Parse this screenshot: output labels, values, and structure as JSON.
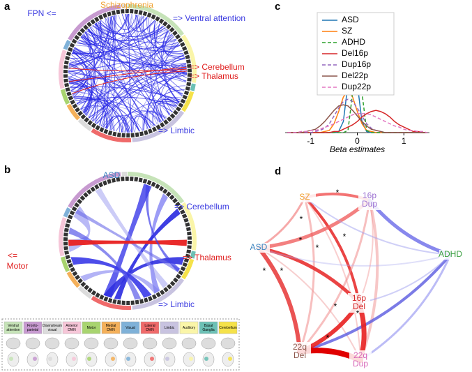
{
  "panel_labels": [
    "a",
    "b",
    "c",
    "d"
  ],
  "panel_a": {
    "annotations": [
      {
        "text": "Schizophrenia",
        "color": "#f0a030"
      },
      {
        "text": "FPN <=",
        "color": "#3a3ae0"
      },
      {
        "text": "=> Ventral attention",
        "color": "#3a3ae0"
      },
      {
        "text": "=> Cerebellum",
        "color": "#e02020"
      },
      {
        "text": "=> Thalamus",
        "color": "#e02020"
      },
      {
        "text": "=> Limbic",
        "color": "#3a3ae0"
      }
    ]
  },
  "panel_b": {
    "annotations": [
      {
        "text": "ASD",
        "color": "#3f86c0"
      },
      {
        "text": "=> Cerebellum",
        "color": "#3a3ae0"
      },
      {
        "text": "<=",
        "color": "#e02020"
      },
      {
        "text": "Motor",
        "color": "#e02020"
      },
      {
        "text": "=> Thalamus",
        "color": "#e02020"
      },
      {
        "text": "=> Limbic",
        "color": "#3a3ae0"
      }
    ]
  },
  "network_legend": [
    {
      "lines": [
        "Ventral",
        "attention"
      ],
      "color": "#c6e3b8"
    },
    {
      "lines": [
        "Fronto-",
        "parietal"
      ],
      "color": "#c79ad0"
    },
    {
      "lines": [
        "Downstream",
        "visual"
      ],
      "color": "#dcdcdc"
    },
    {
      "lines": [
        "Anterior",
        "DMN"
      ],
      "color": "#f6c6d8"
    },
    {
      "lines": [
        "Motor"
      ],
      "color": "#a8d46f"
    },
    {
      "lines": [
        "Medial",
        "DMN"
      ],
      "color": "#f4b05a"
    },
    {
      "lines": [
        "Visual"
      ],
      "color": "#7fb1d8"
    },
    {
      "lines": [
        "Lateral",
        "DMN"
      ],
      "color": "#ef6a6a"
    },
    {
      "lines": [
        "Limbic"
      ],
      "color": "#c8c3e0"
    },
    {
      "lines": [
        "Auditory"
      ],
      "color": "#faf5a8"
    },
    {
      "lines": [
        "Basal",
        "Ganglia"
      ],
      "color": "#6cc0b5"
    },
    {
      "lines": [
        "Cerebellum"
      ],
      "color": "#f5e24a"
    }
  ],
  "chart_data": {
    "type": "line",
    "x_label": "Beta estimates",
    "x": [
      -1.5,
      -1.4,
      -1.3,
      -1.2,
      -1.1,
      -1.0,
      -0.9,
      -0.8,
      -0.7,
      -0.6,
      -0.5,
      -0.4,
      -0.3,
      -0.2,
      -0.1,
      0,
      0.1,
      0.2,
      0.3,
      0.4,
      0.5,
      0.6,
      0.7,
      0.8,
      0.9,
      1.0,
      1.1,
      1.2,
      1.3,
      1.4,
      1.5
    ],
    "xlim": [
      -1.55,
      1.55
    ],
    "xticks": [
      -1,
      0,
      1
    ],
    "ylim": [
      0,
      1.08
    ],
    "legend": "upper right",
    "series": [
      {
        "name": "ASD",
        "color": "#1f77b4",
        "dashed": false,
        "values": [
          0,
          0,
          0,
          0,
          0,
          0,
          0,
          0,
          0,
          0,
          0,
          0.01,
          0.1,
          0.44,
          0.72,
          0.44,
          0.1,
          0.01,
          0,
          0,
          0,
          0,
          0,
          0,
          0,
          0,
          0,
          0,
          0,
          0,
          0
        ]
      },
      {
        "name": "SZ",
        "color": "#ff7f0e",
        "dashed": false,
        "values": [
          0,
          0,
          0,
          0,
          0,
          0,
          0,
          0,
          0.01,
          0.02,
          0.08,
          0.19,
          0.32,
          0.38,
          0.32,
          0.19,
          0.08,
          0.02,
          0.01,
          0,
          0,
          0,
          0,
          0,
          0,
          0,
          0,
          0,
          0,
          0,
          0
        ]
      },
      {
        "name": "ADHD",
        "color": "#2ca02c",
        "dashed": true,
        "values": [
          0,
          0,
          0,
          0,
          0,
          0,
          0,
          0,
          0,
          0,
          0,
          0,
          0,
          0.02,
          0.36,
          1,
          0.36,
          0.02,
          0,
          0,
          0,
          0,
          0,
          0,
          0,
          0,
          0,
          0,
          0,
          0,
          0
        ]
      },
      {
        "name": "Del16p",
        "color": "#d62728",
        "dashed": false,
        "values": [
          0,
          0,
          0,
          0,
          0,
          0,
          0,
          0,
          0,
          0,
          0.01,
          0.01,
          0.03,
          0.05,
          0.07,
          0.1,
          0.14,
          0.17,
          0.19,
          0.2,
          0.19,
          0.17,
          0.14,
          0.1,
          0.07,
          0.05,
          0.03,
          0.01,
          0.01,
          0,
          0
        ]
      },
      {
        "name": "Dup16p",
        "color": "#9467bd",
        "dashed": true,
        "values": [
          0,
          0,
          0,
          0,
          0,
          0,
          0.01,
          0.02,
          0.04,
          0.08,
          0.15,
          0.22,
          0.28,
          0.3,
          0.28,
          0.22,
          0.15,
          0.08,
          0.04,
          0.02,
          0.01,
          0,
          0,
          0,
          0,
          0,
          0,
          0,
          0,
          0,
          0
        ]
      },
      {
        "name": "Del22p",
        "color": "#8c564b",
        "dashed": false,
        "values": [
          0,
          0,
          0,
          0,
          0.01,
          0.02,
          0.03,
          0.06,
          0.1,
          0.15,
          0.2,
          0.24,
          0.25,
          0.24,
          0.2,
          0.15,
          0.1,
          0.06,
          0.03,
          0.02,
          0.01,
          0,
          0,
          0,
          0,
          0,
          0,
          0,
          0,
          0,
          0
        ]
      },
      {
        "name": "Dup22p",
        "color": "#e377c2",
        "dashed": true,
        "values": [
          0,
          0,
          0,
          0.01,
          0.01,
          0.02,
          0.02,
          0.03,
          0.05,
          0.06,
          0.08,
          0.1,
          0.12,
          0.14,
          0.16,
          0.17,
          0.17,
          0.17,
          0.16,
          0.14,
          0.12,
          0.1,
          0.08,
          0.06,
          0.05,
          0.03,
          0.02,
          0.02,
          0.01,
          0.01,
          0
        ]
      }
    ]
  },
  "panel_d": {
    "significance_marker": "*",
    "nodes": [
      {
        "lines": [
          "SZ"
        ],
        "color": "#f0a030"
      },
      {
        "lines": [
          "16p",
          "Dup"
        ],
        "color": "#9b6fd0"
      },
      {
        "lines": [
          "ASD"
        ],
        "color": "#3f86c0"
      },
      {
        "lines": [
          "ADHD"
        ],
        "color": "#3aa040"
      },
      {
        "lines": [
          "16p",
          "Del"
        ],
        "color": "#d62728"
      },
      {
        "lines": [
          "22q",
          "Del"
        ],
        "color": "#8c564b"
      },
      {
        "lines": [
          "22q",
          "Dup"
        ],
        "color": "#d868b8"
      }
    ]
  }
}
